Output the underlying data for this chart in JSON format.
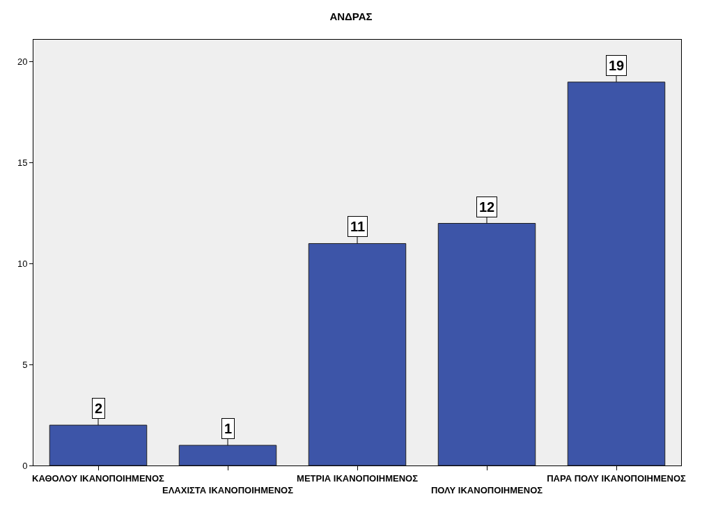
{
  "chart_data": {
    "type": "bar",
    "title": "ΑΝΔΡΑΣ",
    "categories": [
      "ΚΑΘΟΛΟΥ ΙΚΑΝΟΠΟΙΗΜΕΝΟΣ",
      "ΕΛΑΧΙΣΤΑ ΙΚΑΝΟΠΟΙΗΜΕΝΟΣ",
      "ΜΕΤΡΙΑ ΙΚΑΝΟΠΟΙΗΜΕΝΟΣ",
      "ΠΟΛΥ ΙΚΑΝΟΠΟΙΗΜΕΝΟΣ",
      "ΠΑΡΑ ΠΟΛΥ ΙΚΑΝΟΠΟΙΗΜΕΝΟΣ"
    ],
    "values": [
      2,
      1,
      11,
      12,
      19
    ],
    "color": "#3d55a8",
    "ylim": [
      0,
      21.1
    ],
    "yticks": [
      0,
      5,
      10,
      15,
      20
    ],
    "data_labels": true
  }
}
